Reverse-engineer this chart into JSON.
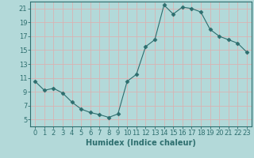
{
  "x": [
    0,
    1,
    2,
    3,
    4,
    5,
    6,
    7,
    8,
    9,
    10,
    11,
    12,
    13,
    14,
    15,
    16,
    17,
    18,
    19,
    20,
    21,
    22,
    23
  ],
  "y": [
    10.5,
    9.2,
    9.5,
    8.8,
    7.5,
    6.5,
    6.0,
    5.7,
    5.3,
    5.8,
    10.5,
    11.5,
    15.5,
    16.5,
    21.5,
    20.2,
    21.2,
    21.0,
    20.5,
    18.0,
    17.0,
    16.5,
    16.0,
    14.7
  ],
  "bg_color": "#b3d9d9",
  "line_color": "#2d6e6e",
  "marker": "D",
  "marker_size": 2.5,
  "xlabel": "Humidex (Indice chaleur)",
  "xlim": [
    -0.5,
    23.5
  ],
  "ylim": [
    4,
    22
  ],
  "yticks": [
    5,
    7,
    9,
    11,
    13,
    15,
    17,
    19,
    21
  ],
  "xticks": [
    0,
    1,
    2,
    3,
    4,
    5,
    6,
    7,
    8,
    9,
    10,
    11,
    12,
    13,
    14,
    15,
    16,
    17,
    18,
    19,
    20,
    21,
    22,
    23
  ],
  "grid_color": "#d9b3b3",
  "xlabel_fontsize": 7,
  "tick_fontsize": 6,
  "tick_color": "#2d6e6e"
}
